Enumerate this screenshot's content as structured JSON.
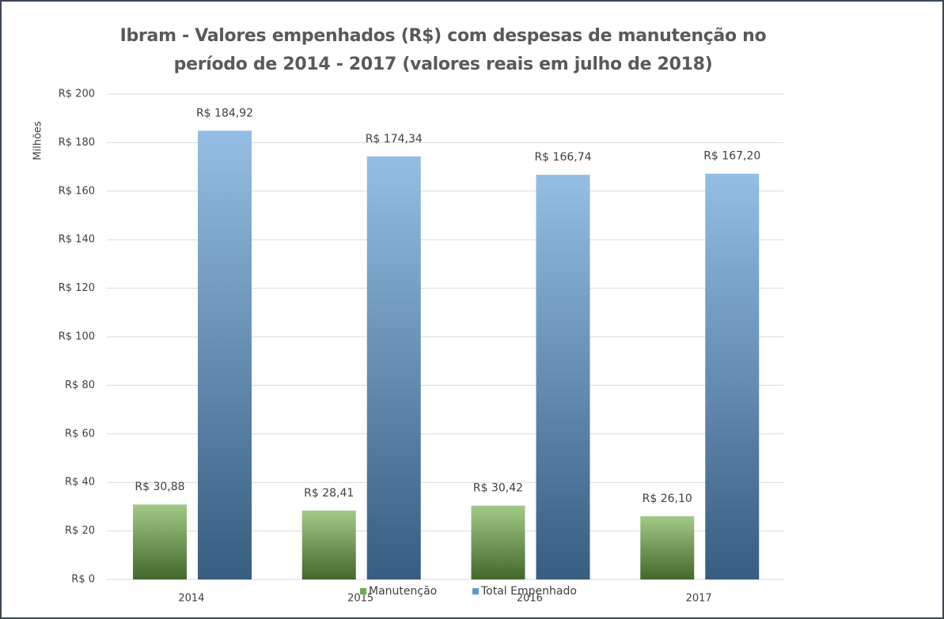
{
  "chart_data": {
    "type": "bar",
    "title": "Ibram - Valores empenhados (R$) com despesas de manutenção no período de 2014 - 2017 (valores reais em julho de 2018)",
    "y_label": "Milhões",
    "categories": [
      "2014",
      "2015",
      "2016",
      "2017"
    ],
    "series": [
      {
        "name": "Manutenção",
        "color": "#70ad47",
        "values": [
          30.88,
          28.41,
          30.42,
          26.1
        ],
        "value_labels": [
          "R$ 30,88",
          "R$ 28,41",
          "R$ 30,42",
          "R$ 26,10"
        ]
      },
      {
        "name": "Total Empenhado",
        "color": "#5b9bd5",
        "values": [
          184.92,
          174.34,
          166.74,
          167.2
        ],
        "value_labels": [
          "R$ 184,92",
          "R$ 174,34",
          "R$ 166,74",
          "R$ 167,20"
        ]
      }
    ],
    "ylim": [
      0,
      200
    ],
    "yticks": [
      {
        "value": 0,
        "label": "R$ 0"
      },
      {
        "value": 20,
        "label": "R$ 20"
      },
      {
        "value": 40,
        "label": "R$ 40"
      },
      {
        "value": 60,
        "label": "R$ 60"
      },
      {
        "value": 80,
        "label": "R$ 80"
      },
      {
        "value": 100,
        "label": "R$ 100"
      },
      {
        "value": 120,
        "label": "R$ 120"
      },
      {
        "value": 140,
        "label": "R$ 140"
      },
      {
        "value": 160,
        "label": "R$ 160"
      },
      {
        "value": 180,
        "label": "R$ 180"
      },
      {
        "value": 200,
        "label": "R$ 200"
      }
    ],
    "grid": true,
    "legend": "bottom"
  }
}
